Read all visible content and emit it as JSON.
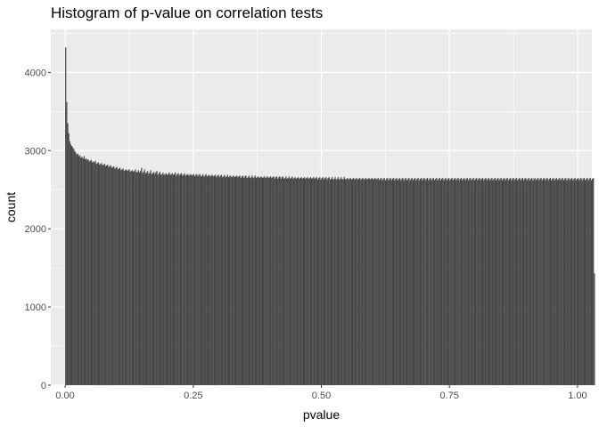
{
  "chart_data": {
    "type": "bar",
    "title": "Histogram of p-value on correlation tests",
    "xlabel": "pvalue",
    "ylabel": "count",
    "xlim": [
      -0.028,
      1.028
    ],
    "ylim": [
      0,
      4550
    ],
    "x_ticks": [
      0.0,
      0.25,
      0.5,
      0.75,
      1.0
    ],
    "x_tick_labels": [
      "0.00",
      "0.25",
      "0.50",
      "0.75",
      "1.00"
    ],
    "y_ticks": [
      0,
      1000,
      2000,
      3000,
      4000
    ],
    "y_tick_labels": [
      "0",
      "1000",
      "2000",
      "3000",
      "4000"
    ],
    "bin_width": 0.002,
    "grid": true,
    "legend": "none",
    "colors": {
      "panel_background": "#ebebeb",
      "grid_major": "#ffffff",
      "bar_fill": "#474747"
    },
    "values": [
      4320,
      3620,
      3350,
      3220,
      3120,
      3080,
      3060,
      3040,
      3020,
      2990,
      2970,
      2950,
      2960,
      2930,
      2940,
      2910,
      2920,
      2900,
      2930,
      2890,
      2900,
      2880,
      2890,
      2860,
      2870,
      2880,
      2850,
      2860,
      2850,
      2870,
      2830,
      2840,
      2850,
      2820,
      2830,
      2840,
      2810,
      2820,
      2830,
      2800,
      2810,
      2820,
      2790,
      2800,
      2810,
      2780,
      2790,
      2800,
      2770,
      2780,
      2790,
      2760,
      2770,
      2780,
      2750,
      2760,
      2770,
      2740,
      2750,
      2760,
      2740,
      2750,
      2760,
      2730,
      2740,
      2750,
      2730,
      2740,
      2760,
      2720,
      2730,
      2750,
      2720,
      2740,
      2780,
      2710,
      2730,
      2760,
      2710,
      2720,
      2740,
      2700,
      2720,
      2750,
      2700,
      2710,
      2730,
      2700,
      2720,
      2740,
      2690,
      2710,
      2730,
      2690,
      2700,
      2720,
      2690,
      2700,
      2710,
      2690,
      2700,
      2720,
      2690,
      2700,
      2710,
      2690,
      2700,
      2720,
      2680,
      2700,
      2710,
      2680,
      2700,
      2710,
      2680,
      2690,
      2710,
      2680,
      2690,
      2700,
      2680,
      2690,
      2700,
      2680,
      2690,
      2700,
      2670,
      2690,
      2700,
      2670,
      2690,
      2700,
      2670,
      2680,
      2700,
      2670,
      2680,
      2700,
      2670,
      2680,
      2690,
      2670,
      2680,
      2690,
      2670,
      2680,
      2690,
      2660,
      2680,
      2690,
      2660,
      2680,
      2690,
      2660,
      2670,
      2690,
      2660,
      2670,
      2690,
      2660,
      2670,
      2680,
      2660,
      2670,
      2680,
      2660,
      2670,
      2680,
      2660,
      2670,
      2680,
      2650,
      2670,
      2680,
      2650,
      2670,
      2680,
      2650,
      2660,
      2680,
      2650,
      2660,
      2680,
      2650,
      2660,
      2680,
      2650,
      2660,
      2670,
      2650,
      2660,
      2670,
      2650,
      2660,
      2670,
      2650,
      2660,
      2670,
      2650,
      2660,
      2670,
      2650,
      2660,
      2670,
      2640,
      2660,
      2670,
      2640,
      2660,
      2670,
      2640,
      2660,
      2670,
      2640,
      2650,
      2670,
      2640,
      2650,
      2670,
      2640,
      2650,
      2670,
      2640,
      2650,
      2660,
      2640,
      2650,
      2660,
      2640,
      2650,
      2660,
      2640,
      2650,
      2660,
      2640,
      2650,
      2660,
      2640,
      2650,
      2660,
      2640,
      2650,
      2660,
      2640,
      2650,
      2660,
      2630,
      2650,
      2660,
      2630,
      2650,
      2660,
      2630,
      2650,
      2660,
      2630,
      2650,
      2660,
      2630,
      2640,
      2660,
      2630,
      2640,
      2660,
      2630,
      2640,
      2660,
      2630,
      2640,
      2660,
      2630,
      2640,
      2660,
      2630,
      2640,
      2650,
      2630,
      2640,
      2650,
      2630,
      2640,
      2650,
      2630,
      2640,
      2650,
      2630,
      2640,
      2650,
      2630,
      2640,
      2650,
      2630,
      2640,
      2650,
      2630,
      2640,
      2650,
      2630,
      2640,
      2650,
      2630,
      2640,
      2650,
      2630,
      2640,
      2650,
      2620,
      2640,
      2650,
      2620,
      2640,
      2650,
      2620,
      2640,
      2650,
      2620,
      2640,
      2650,
      2620,
      2640,
      2650,
      2620,
      2640,
      2650,
      2620,
      2640,
      2650,
      2620,
      2640,
      2650,
      2620,
      2640,
      2650,
      2620,
      2640,
      2650,
      2620,
      2640,
      2650,
      2620,
      2640,
      2650,
      2620,
      2640,
      2650,
      2620,
      2640,
      2650,
      2620,
      2640,
      2650,
      2620,
      2640,
      2650,
      2620,
      2640,
      2650,
      2620,
      2640,
      2650,
      2620,
      2640,
      2650,
      2620,
      2640,
      2650,
      2620,
      2640,
      2650,
      2620,
      2640,
      2650,
      2620,
      2640,
      2650,
      2620,
      2640,
      2650,
      2620,
      2640,
      2650,
      2620,
      2640,
      2650,
      2620,
      2640,
      2650,
      2620,
      2640,
      2650,
      2620,
      2640,
      2650,
      2620,
      2640,
      2650,
      2620,
      2640,
      2650,
      2620,
      2640,
      2650,
      2620,
      2640,
      2650,
      2620,
      2640,
      2650,
      2620,
      2640,
      2650,
      2620,
      2640,
      2650,
      2620,
      2640,
      2650,
      2620,
      2640,
      2650,
      2620,
      2640,
      2650,
      2620,
      2640,
      2650,
      2620,
      2640,
      2650,
      2620,
      2640,
      2650,
      2620,
      2640,
      2650,
      2620,
      2640,
      2650,
      2620,
      2640,
      2650,
      2620,
      2640,
      2650,
      2620,
      2640,
      2650,
      2620,
      2640,
      2650,
      2620,
      2640,
      2650,
      2620,
      2640,
      2650,
      2620,
      2640,
      2650,
      2620,
      2640,
      2650,
      2620,
      2640,
      2650,
      2620,
      2640,
      2650,
      2620,
      2640,
      2650,
      2620,
      2640,
      2650,
      2620,
      2640,
      2650,
      2620,
      2640,
      2650,
      2620,
      2640,
      2650,
      2620,
      2640,
      2650,
      2620,
      2640,
      2650,
      2620,
      2640,
      2650,
      2620,
      2640,
      2650,
      2620,
      2640,
      2650,
      2620,
      2640,
      2650,
      2620,
      2640,
      2650,
      2620,
      2640,
      2650,
      2620,
      2640,
      2650,
      2620,
      2640,
      2650,
      2620,
      2640,
      2650,
      1430
    ]
  }
}
